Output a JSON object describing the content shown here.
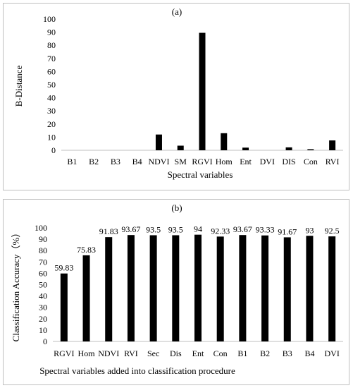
{
  "chart_data": [
    {
      "type": "bar",
      "title": "(a)",
      "xlabel": "Spectral variables",
      "ylabel": "B-Distance",
      "categories": [
        "B1",
        "B2",
        "B3",
        "B4",
        "NDVI",
        "SM",
        "RGVI",
        "Hom",
        "Ent",
        "DVI",
        "DIS",
        "Con",
        "RVI"
      ],
      "values": [
        0,
        0,
        0,
        0,
        12,
        3.5,
        89.5,
        13,
        2,
        0,
        2.2,
        0.8,
        7.5
      ],
      "ylim": [
        0,
        100
      ],
      "yticks": [
        0,
        10,
        20,
        30,
        40,
        50,
        60,
        70,
        80,
        90,
        100
      ],
      "grid": false,
      "bar_color": "#000000"
    },
    {
      "type": "bar",
      "title": "(b)",
      "xlabel": "Spectral variables added into classification procedure",
      "ylabel": "Classification Accuracy（%）",
      "categories": [
        "RGVI",
        "Hom",
        "NDVI",
        "RVI",
        "Sec",
        "Dis",
        "Ent",
        "Con",
        "B1",
        "B2",
        "B3",
        "B4",
        "DVI"
      ],
      "values": [
        59.83,
        75.83,
        91.83,
        93.67,
        93.5,
        93.5,
        94,
        92.33,
        93.67,
        93.33,
        91.67,
        93,
        92.5
      ],
      "data_labels": [
        "59.83",
        "75.83",
        "91.83",
        "93.67",
        "93.5",
        "93.5",
        "94",
        "92.33",
        "93.67",
        "93.33",
        "91.67",
        "93",
        "92.5"
      ],
      "ylim": [
        0,
        100
      ],
      "yticks": [
        0,
        10,
        20,
        30,
        40,
        50,
        60,
        70,
        80,
        90,
        100
      ],
      "grid": false,
      "bar_color": "#000000"
    }
  ]
}
